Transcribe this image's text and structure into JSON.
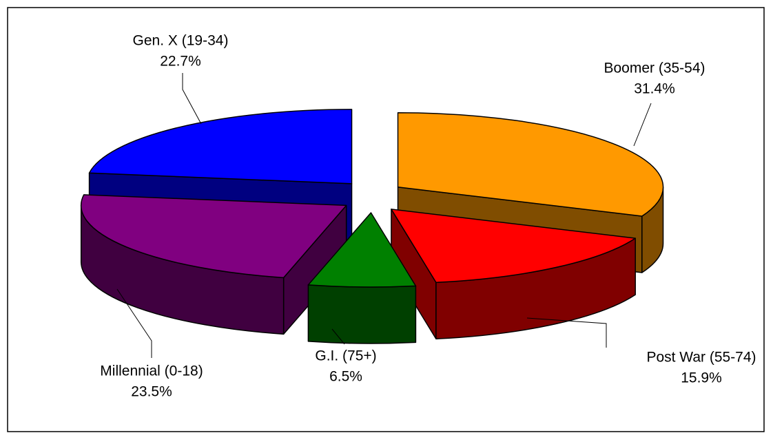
{
  "chart_data": {
    "type": "pie",
    "categories": [
      "Boomer (35-54)",
      "Post War (55-74)",
      "G.I. (75+)",
      "Millennial (0-18)",
      "Gen. X (19-34)"
    ],
    "values": [
      31.4,
      15.9,
      6.5,
      23.5,
      22.7
    ],
    "value_labels": [
      "31.4%",
      "15.9%",
      "6.5%",
      "23.5%",
      "22.7%"
    ],
    "colors": [
      "#ff9900",
      "#ff0000",
      "#008000",
      "#800080",
      "#0000ff"
    ]
  }
}
